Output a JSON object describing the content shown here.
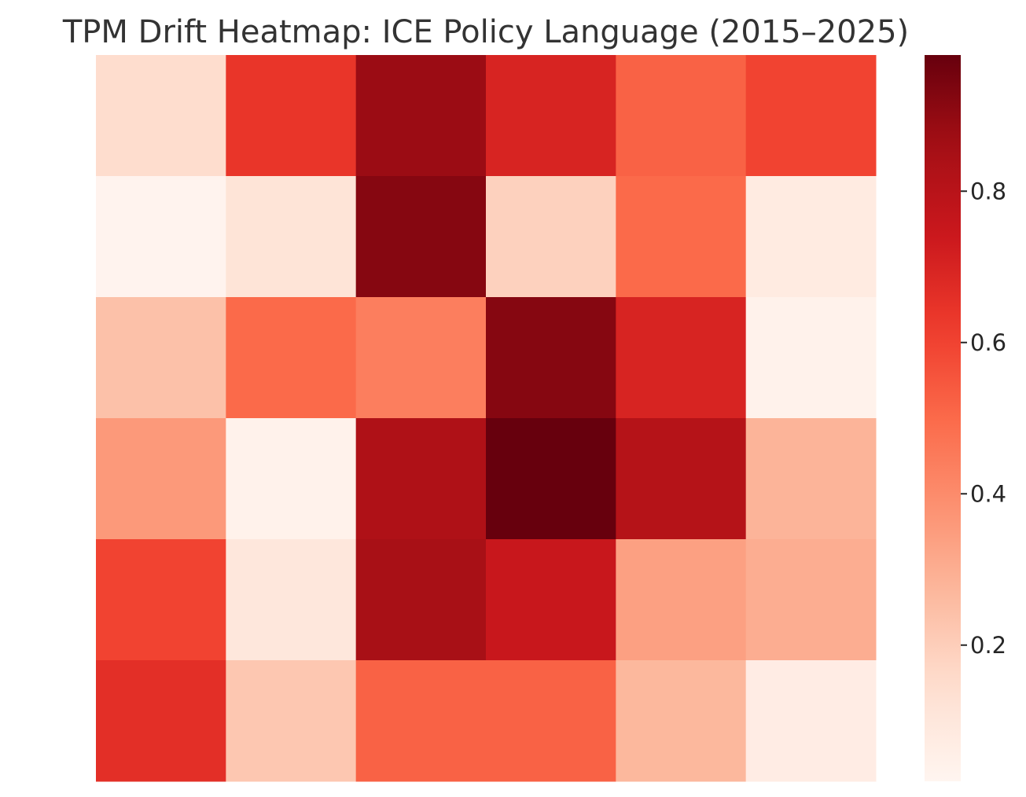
{
  "chart_data": {
    "type": "heatmap",
    "title": "TPM Drift Heatmap: ICE Policy Language (2015–2025)",
    "xlabel": "",
    "ylabel": "",
    "rows": 6,
    "cols": 6,
    "values": [
      [
        0.15,
        0.64,
        0.88,
        0.7,
        0.52,
        0.6
      ],
      [
        0.03,
        0.12,
        0.92,
        0.19,
        0.5,
        0.08
      ],
      [
        0.24,
        0.5,
        0.44,
        0.92,
        0.7,
        0.04
      ],
      [
        0.36,
        0.04,
        0.83,
        0.98,
        0.81,
        0.28
      ],
      [
        0.6,
        0.1,
        0.85,
        0.75,
        0.34,
        0.3
      ],
      [
        0.66,
        0.22,
        0.52,
        0.52,
        0.27,
        0.07
      ]
    ],
    "colorbar": {
      "min": 0.02,
      "max": 0.98,
      "ticks": [
        0.2,
        0.4,
        0.6,
        0.8
      ],
      "tick_labels": [
        "0.2",
        "0.4",
        "0.6",
        "0.8"
      ],
      "colormap": "Reds"
    },
    "grid": false
  }
}
